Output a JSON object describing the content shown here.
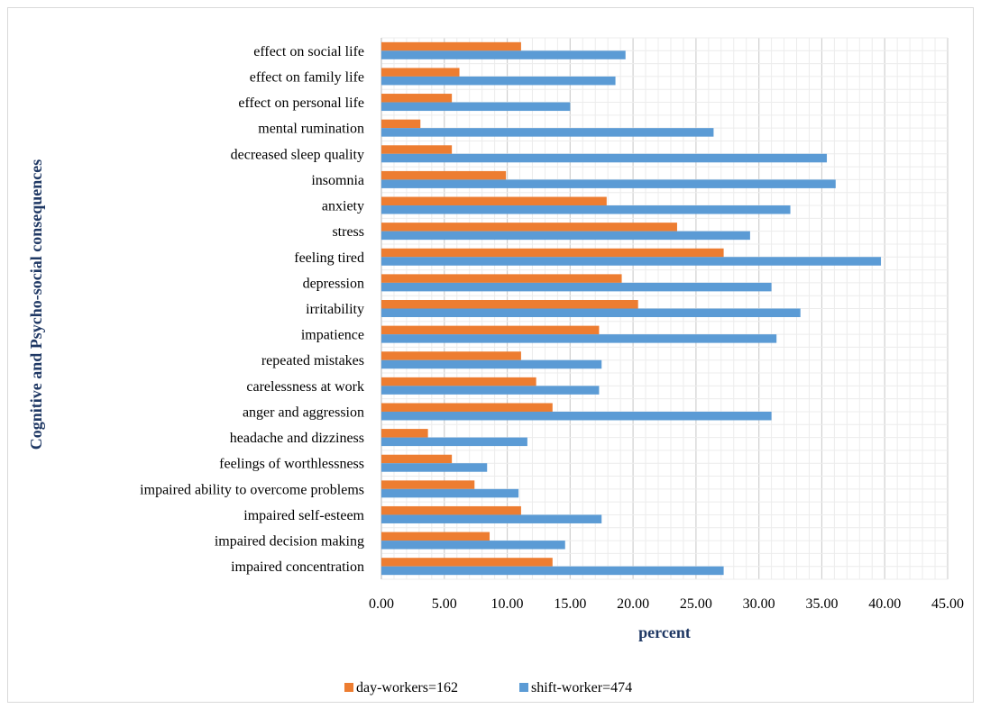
{
  "chart_data": {
    "type": "bar",
    "orientation": "horizontal",
    "xlabel": "percent",
    "ylabel": "Cognitive and Psycho-social consequences",
    "xlim": [
      0,
      45
    ],
    "xticks": [
      "0.00",
      "5.00",
      "10.00",
      "15.00",
      "20.00",
      "25.00",
      "30.00",
      "35.00",
      "40.00",
      "45.00"
    ],
    "grid": true,
    "legend_position": "bottom",
    "categories": [
      "effect on social life",
      "effect on family life",
      "effect on personal life",
      "mental rumination",
      "decreased sleep quality",
      "insomnia",
      "anxiety",
      "stress",
      "feeling tired",
      "depression",
      "irritability",
      "impatience",
      "repeated mistakes",
      "carelessness at work",
      "anger and aggression",
      "headache and dizziness",
      "feelings of worthlessness",
      "impaired ability to overcome problems",
      "impaired self-esteem",
      "impaired decision making",
      "impaired concentration"
    ],
    "series": [
      {
        "name": "day-workers=162",
        "color": "#ed7d31",
        "values": [
          11.1,
          6.2,
          5.6,
          3.1,
          5.6,
          9.9,
          17.9,
          23.5,
          27.2,
          19.1,
          20.4,
          17.3,
          11.1,
          12.3,
          13.6,
          3.7,
          5.6,
          7.4,
          11.1,
          8.6,
          13.6
        ]
      },
      {
        "name": "shift-worker=474",
        "color": "#5b9bd5",
        "values": [
          19.4,
          18.6,
          15.0,
          26.4,
          35.4,
          36.1,
          32.5,
          29.3,
          39.7,
          31.0,
          33.3,
          31.4,
          17.5,
          17.3,
          31.0,
          11.6,
          8.4,
          10.9,
          17.5,
          14.6,
          27.2
        ]
      }
    ]
  }
}
